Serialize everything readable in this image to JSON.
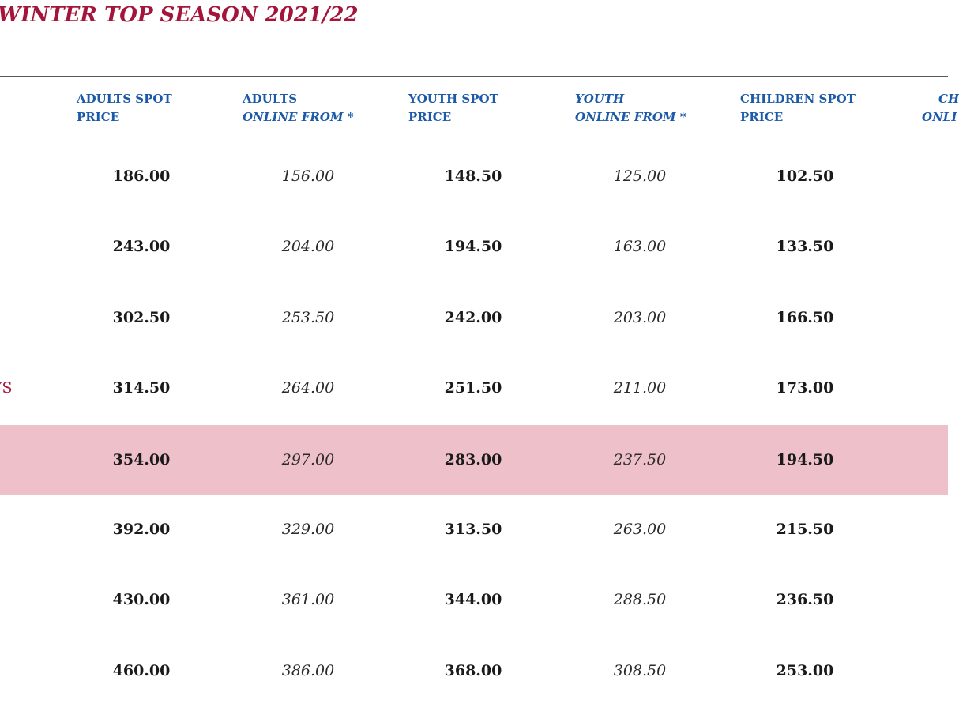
{
  "title": "WINTER TOP SEASON 2021/22",
  "headers": [
    {
      "line1": "ADULTS SPOT",
      "line2": "PRICE"
    },
    {
      "line1": "ADULTS",
      "line2": "ONLINE FROM *"
    },
    {
      "line1": "YOUTH SPOT",
      "line2": "PRICE"
    },
    {
      "line1": "YOUTH",
      "line2": "ONLINE FROM *"
    },
    {
      "line1": "CHILDREN SPOT",
      "line2": "PRICE"
    },
    {
      "line1": "CH",
      "line2": "ONLI"
    }
  ],
  "row_label_partial": "YS",
  "rows": [
    [
      "186.00",
      "156.00",
      "148.50",
      "125.00",
      "102.50"
    ],
    [
      "243.00",
      "204.00",
      "194.50",
      "163.00",
      "133.50"
    ],
    [
      "302.50",
      "253.50",
      "242.00",
      "203.00",
      "166.50"
    ],
    [
      "314.50",
      "264.00",
      "251.50",
      "211.00",
      "173.00"
    ],
    [
      "354.00",
      "297.00",
      "283.00",
      "237.50",
      "194.50"
    ],
    [
      "392.00",
      "329.00",
      "313.50",
      "263.00",
      "215.50"
    ],
    [
      "430.00",
      "361.00",
      "344.00",
      "288.50",
      "236.50"
    ],
    [
      "460.00",
      "386.00",
      "368.00",
      "308.50",
      "253.00"
    ]
  ],
  "highlight_row_index": 4,
  "colors": {
    "title": "#a3153a",
    "header": "#1c5aa8",
    "highlight": "#eec1ca"
  }
}
